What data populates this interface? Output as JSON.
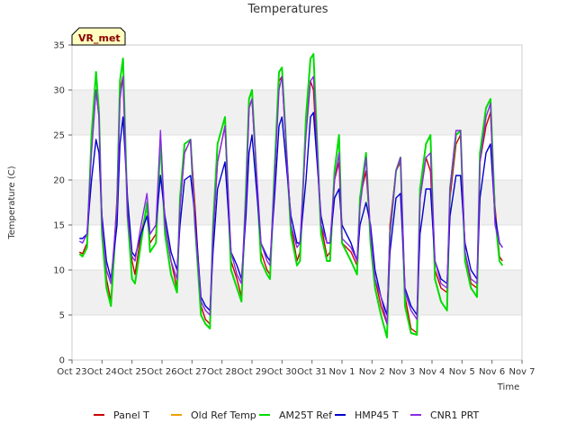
{
  "chart_data": {
    "type": "line",
    "title": "Temperatures",
    "xlabel": "Time",
    "ylabel": "Temperature (C)",
    "badge": "VR_met",
    "ylim": [
      0,
      35
    ],
    "xlim": [
      0,
      15
    ],
    "yticks": [
      0,
      5,
      10,
      15,
      20,
      25,
      30,
      35
    ],
    "x_tick_labels": [
      "Oct 23",
      "Oct 24",
      "Oct 25",
      "Oct 26",
      "Oct 27",
      "Oct 28",
      "Oct 29",
      "Oct 30",
      "Oct 31",
      "Nov 1",
      "Nov 2",
      "Nov 3",
      "Nov 4",
      "Nov 5",
      "Nov 6",
      "Nov 7"
    ],
    "grid": "horizontal bands",
    "legend_position": "bottom",
    "x_day_index_origin": "Oct 23",
    "series": [
      {
        "name": "Panel T",
        "color": "#cc0000",
        "x": [
          0.25,
          0.35,
          0.5,
          0.65,
          0.8,
          0.9,
          1.0,
          1.15,
          1.3,
          1.5,
          1.6,
          1.7,
          1.85,
          2.0,
          2.1,
          2.3,
          2.5,
          2.6,
          2.8,
          2.95,
          3.1,
          3.3,
          3.5,
          3.6,
          3.75,
          3.95,
          4.1,
          4.3,
          4.45,
          4.6,
          4.7,
          4.85,
          5.1,
          5.3,
          5.5,
          5.65,
          5.8,
          5.9,
          6.0,
          6.3,
          6.5,
          6.6,
          6.75,
          6.9,
          7.0,
          7.3,
          7.5,
          7.6,
          7.8,
          7.95,
          8.05,
          8.3,
          8.5,
          8.6,
          8.75,
          8.9,
          9.0,
          9.3,
          9.5,
          9.6,
          9.8,
          9.95,
          10.1,
          10.3,
          10.5,
          10.6,
          10.8,
          10.95,
          11.1,
          11.3,
          11.5,
          11.6,
          11.8,
          11.95,
          12.1,
          12.3,
          12.5,
          12.6,
          12.8,
          12.95,
          13.1,
          13.3,
          13.5,
          13.6,
          13.8,
          13.95,
          14.1,
          14.25,
          14.35
        ],
        "y": [
          12,
          11.8,
          13,
          24,
          30,
          27,
          15,
          9,
          6.5,
          18,
          30,
          31.5,
          17,
          11,
          9.5,
          14,
          17,
          13,
          14,
          24.5,
          15,
          11,
          8,
          17,
          23,
          24.5,
          17,
          6,
          4.5,
          4,
          14,
          22,
          26,
          11,
          9,
          7,
          18,
          28,
          29,
          12,
          10,
          9.5,
          20,
          31,
          31.5,
          15,
          11,
          12,
          26,
          31,
          30,
          15,
          11.5,
          12,
          20,
          22,
          13,
          12,
          10.5,
          18,
          21,
          14,
          9,
          6,
          4,
          15,
          21,
          22,
          7,
          3.5,
          3,
          18,
          22.5,
          21,
          10,
          8,
          7.5,
          18,
          24,
          25,
          12,
          8.5,
          8,
          22,
          26,
          27.5,
          17,
          11.5,
          11
        ]
      },
      {
        "name": "Old Ref Temp",
        "color": "#f0a000",
        "x": [],
        "y": []
      },
      {
        "name": "AM25T Ref",
        "color": "#00dd00",
        "x": [
          0.25,
          0.35,
          0.5,
          0.65,
          0.8,
          0.9,
          1.0,
          1.15,
          1.3,
          1.5,
          1.6,
          1.7,
          1.85,
          2.0,
          2.1,
          2.3,
          2.5,
          2.6,
          2.8,
          2.95,
          3.1,
          3.3,
          3.5,
          3.6,
          3.75,
          3.95,
          4.1,
          4.3,
          4.45,
          4.6,
          4.7,
          4.85,
          5.1,
          5.3,
          5.5,
          5.65,
          5.8,
          5.9,
          6.0,
          6.3,
          6.5,
          6.6,
          6.75,
          6.9,
          7.0,
          7.3,
          7.5,
          7.6,
          7.8,
          7.95,
          8.05,
          8.3,
          8.5,
          8.6,
          8.75,
          8.9,
          9.0,
          9.3,
          9.5,
          9.6,
          9.8,
          9.95,
          10.1,
          10.3,
          10.5,
          10.6,
          10.8,
          10.95,
          11.1,
          11.3,
          11.5,
          11.6,
          11.8,
          11.95,
          12.1,
          12.3,
          12.5,
          12.6,
          12.8,
          12.95,
          13.1,
          13.3,
          13.5,
          13.6,
          13.8,
          13.95,
          14.1,
          14.25,
          14.35
        ],
        "y": [
          11.8,
          11.5,
          12.5,
          25,
          32,
          27.5,
          14,
          8,
          6,
          17,
          31,
          33.5,
          16,
          9,
          8.5,
          13,
          17.5,
          12,
          13,
          24.5,
          14,
          9.5,
          7.5,
          18,
          24,
          24.5,
          15,
          5,
          4,
          3.5,
          15,
          24,
          27,
          10,
          8,
          6.5,
          19,
          29,
          30,
          11,
          9.5,
          9,
          21,
          32,
          32.5,
          14,
          10.5,
          11,
          27,
          33.5,
          34,
          14,
          11,
          11,
          21,
          25,
          13,
          11,
          9.5,
          18,
          23,
          13,
          8,
          5,
          2.5,
          14,
          21,
          22.5,
          6,
          3,
          2.8,
          19,
          24,
          25,
          9,
          6.5,
          5.5,
          19,
          25,
          25.5,
          11,
          8,
          7,
          23,
          28,
          29,
          16,
          11,
          10.5
        ]
      },
      {
        "name": "HMP45 T",
        "color": "#0000cc",
        "x": [
          0.25,
          0.35,
          0.5,
          0.65,
          0.8,
          0.9,
          1.0,
          1.15,
          1.3,
          1.5,
          1.6,
          1.7,
          1.85,
          2.0,
          2.1,
          2.3,
          2.5,
          2.6,
          2.8,
          2.95,
          3.1,
          3.3,
          3.5,
          3.6,
          3.75,
          3.95,
          4.1,
          4.3,
          4.45,
          4.6,
          4.7,
          4.85,
          5.1,
          5.3,
          5.5,
          5.65,
          5.8,
          5.9,
          6.0,
          6.3,
          6.5,
          6.6,
          6.75,
          6.9,
          7.0,
          7.3,
          7.5,
          7.6,
          7.8,
          7.95,
          8.05,
          8.3,
          8.5,
          8.6,
          8.75,
          8.9,
          9.0,
          9.3,
          9.5,
          9.6,
          9.8,
          9.95,
          10.1,
          10.3,
          10.5,
          10.6,
          10.8,
          10.95,
          11.1,
          11.3,
          11.5,
          11.6,
          11.8,
          11.95,
          12.1,
          12.3,
          12.5,
          12.6,
          12.8,
          12.95,
          13.1,
          13.3,
          13.5,
          13.6,
          13.8,
          13.95,
          14.1,
          14.25,
          14.35
        ],
        "y": [
          13.5,
          13.5,
          14,
          20,
          24.5,
          23,
          16,
          11,
          9,
          15,
          24,
          27,
          18,
          12,
          11.5,
          14,
          16,
          14,
          15,
          20.5,
          16,
          12,
          10,
          15,
          20,
          20.5,
          16,
          7,
          6,
          5.5,
          12,
          19,
          22,
          12,
          10.5,
          9,
          16,
          23,
          25,
          13,
          11.5,
          11,
          18,
          26,
          27,
          16,
          13,
          13,
          20,
          27,
          27.5,
          16,
          13,
          13,
          18,
          19,
          15,
          13,
          11,
          15,
          17.5,
          15,
          10,
          7,
          5,
          12,
          18,
          18.5,
          8,
          6,
          5,
          14,
          19,
          19,
          11,
          9,
          8.5,
          16,
          20.5,
          20.5,
          13,
          10,
          9,
          18,
          23,
          24,
          16,
          13,
          12.5
        ]
      },
      {
        "name": "CNR1 PRT",
        "color": "#8a2be2",
        "x": [
          0.25,
          0.35,
          0.5,
          0.65,
          0.8,
          0.9,
          1.0,
          1.15,
          1.3,
          1.5,
          1.6,
          1.7,
          1.85,
          2.0,
          2.1,
          2.3,
          2.5,
          2.6,
          2.8,
          2.95,
          3.1,
          3.3,
          3.5,
          3.6,
          3.75,
          3.95,
          4.1,
          4.3,
          4.45,
          4.6,
          4.7,
          4.85,
          5.1,
          5.3,
          5.5,
          5.65,
          5.8,
          5.9,
          6.0,
          6.3,
          6.5,
          6.6,
          6.75,
          6.9,
          7.0,
          7.3,
          7.5,
          7.6,
          7.8,
          7.95,
          8.05,
          8.3,
          8.5,
          8.6,
          8.75,
          8.9,
          9.0,
          9.3,
          9.5,
          9.6,
          9.8,
          9.95,
          10.1,
          10.3,
          10.5,
          10.6,
          10.8,
          10.95,
          11.1,
          11.3,
          11.5,
          11.6,
          11.8,
          11.95,
          12.1,
          12.3,
          12.5,
          12.6,
          12.8,
          12.95,
          13.1,
          13.3,
          13.5,
          13.6,
          13.8,
          13.95,
          14.1,
          14.25,
          14.35
        ],
        "y": [
          13.2,
          13,
          14,
          23,
          30,
          27,
          15,
          10,
          8.5,
          17,
          29,
          31.5,
          16,
          11.5,
          11,
          15,
          18.5,
          14,
          15,
          25.5,
          15,
          11,
          9,
          17,
          23,
          24.5,
          15,
          6.5,
          5.5,
          5,
          14,
          22,
          26,
          12,
          9.5,
          8.5,
          18,
          28,
          29,
          13,
          11,
          10.5,
          20,
          30,
          31.5,
          15,
          12.5,
          13,
          25,
          31,
          31.5,
          15,
          13,
          13,
          20,
          23,
          13.5,
          12.5,
          11,
          17,
          22.5,
          14,
          9,
          7,
          4,
          14,
          21,
          22.5,
          7.5,
          5.5,
          4.5,
          18,
          22.5,
          23,
          11,
          8.5,
          8,
          19,
          25.5,
          25.5,
          12,
          9,
          8.5,
          22,
          27,
          28.5,
          15,
          13,
          12.5
        ]
      }
    ]
  }
}
